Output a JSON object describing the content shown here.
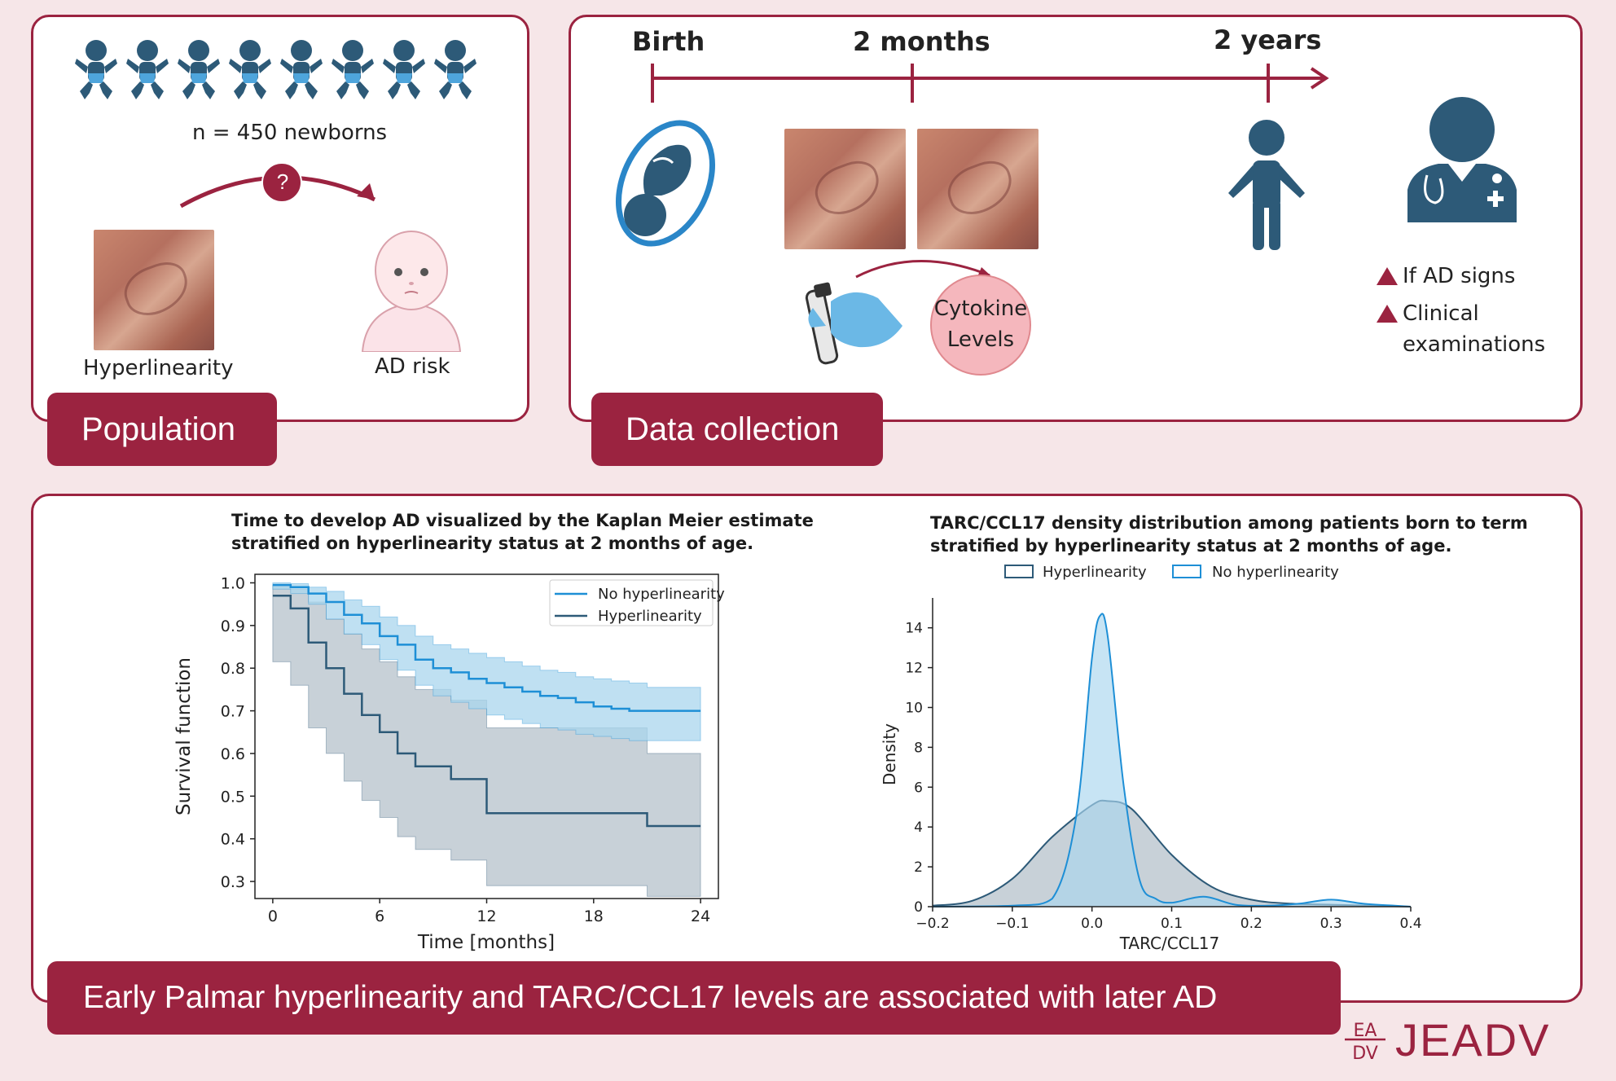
{
  "population": {
    "tab_label": "Population",
    "n_label": "n = 450 newborns",
    "question_mark": "?",
    "hyperlinearity_label": "Hyperlinearity",
    "ad_risk_label": "AD risk"
  },
  "data_collection": {
    "tab_label": "Data collection",
    "timeline": [
      "Birth",
      "2 months",
      "2 years"
    ],
    "cytokine_label_line1": "Cytokine",
    "cytokine_label_line2": "Levels",
    "notes": [
      "If AD signs",
      "Clinical",
      "examinations"
    ]
  },
  "conclusion": {
    "tab_label": "Early Palmar hyperlinearity and TARC/CCL17 levels are associated with later AD"
  },
  "logo": {
    "text": "JEADV",
    "mark": [
      "EA",
      "DV"
    ]
  },
  "colors": {
    "brand": "#9b2340",
    "navy": "#2d5a78",
    "light_blue": "#1e8fd6",
    "fill_blue": "#a9d5ee",
    "fill_grey": "#9aabb8"
  },
  "chart_data": [
    {
      "type": "line",
      "title_line1": "Time to develop AD visualized by the Kaplan Meier estimate",
      "title_line2": "stratified on hyperlinearity status at 2 months of age.",
      "xlabel": "Time [months]",
      "ylabel": "Survival function",
      "xlim": [
        -1,
        25
      ],
      "ylim": [
        0.26,
        1.02
      ],
      "xticks": [
        "0",
        "6",
        "12",
        "18",
        "24"
      ],
      "yticks": [
        "1.0",
        "0.9",
        "0.8",
        "0.7",
        "0.6",
        "0.5",
        "0.4",
        "0.3"
      ],
      "legend": "top-right",
      "series": [
        {
          "name": "No hyperlinearity",
          "color": "#1e8fd6",
          "x": [
            0,
            1,
            2,
            3,
            4,
            5,
            6,
            7,
            8,
            9,
            10,
            11,
            12,
            13,
            14,
            15,
            16,
            17,
            18,
            19,
            20,
            21,
            24
          ],
          "y": [
            0.995,
            0.99,
            0.975,
            0.955,
            0.925,
            0.905,
            0.875,
            0.855,
            0.82,
            0.8,
            0.79,
            0.775,
            0.765,
            0.755,
            0.745,
            0.735,
            0.73,
            0.72,
            0.71,
            0.705,
            0.7,
            0.7,
            0.7
          ],
          "lower": [
            0.985,
            0.975,
            0.95,
            0.915,
            0.88,
            0.855,
            0.82,
            0.795,
            0.76,
            0.735,
            0.72,
            0.705,
            0.69,
            0.68,
            0.67,
            0.66,
            0.655,
            0.645,
            0.64,
            0.635,
            0.63,
            0.63,
            0.63
          ],
          "upper": [
            1.0,
            0.998,
            0.99,
            0.98,
            0.96,
            0.945,
            0.92,
            0.9,
            0.875,
            0.855,
            0.845,
            0.835,
            0.825,
            0.815,
            0.805,
            0.795,
            0.79,
            0.78,
            0.775,
            0.77,
            0.765,
            0.755,
            0.755
          ]
        },
        {
          "name": "Hyperlinearity",
          "color": "#2d5a78",
          "x": [
            0,
            1,
            2,
            3,
            4,
            5,
            6,
            7,
            8,
            10,
            12,
            21,
            24
          ],
          "y": [
            0.97,
            0.94,
            0.86,
            0.8,
            0.74,
            0.69,
            0.65,
            0.6,
            0.57,
            0.54,
            0.46,
            0.43,
            0.43
          ],
          "lower": [
            0.815,
            0.76,
            0.66,
            0.6,
            0.535,
            0.49,
            0.45,
            0.405,
            0.375,
            0.35,
            0.29,
            0.265,
            0.265
          ],
          "upper": [
            0.995,
            0.985,
            0.955,
            0.915,
            0.88,
            0.845,
            0.815,
            0.78,
            0.75,
            0.725,
            0.66,
            0.6,
            0.585
          ]
        }
      ]
    },
    {
      "type": "area",
      "title_line1": "TARC/CCL17 density distribution among patients born to term",
      "title_line2": "stratified by hyperlinearity status at 2 months of age.",
      "xlabel": "TARC/CCL17",
      "ylabel": "Density",
      "xlim": [
        -0.2,
        0.4
      ],
      "ylim": [
        0,
        15.5
      ],
      "xticks": [
        "−0.2",
        "−0.1",
        "0.0",
        "0.1",
        "0.2",
        "0.3",
        "0.4"
      ],
      "yticks": [
        "0",
        "2",
        "4",
        "6",
        "8",
        "10",
        "12",
        "14"
      ],
      "legend": "top",
      "series": [
        {
          "name": "Hyperlinearity",
          "color": "#2d5a78",
          "x": [
            -0.2,
            -0.15,
            -0.1,
            -0.05,
            0.0,
            0.02,
            0.05,
            0.1,
            0.15,
            0.2,
            0.25,
            0.3,
            0.35,
            0.4
          ],
          "y": [
            0.05,
            0.3,
            1.4,
            3.5,
            5.1,
            5.3,
            4.9,
            2.6,
            1.0,
            0.35,
            0.15,
            0.1,
            0.05,
            0.0
          ]
        },
        {
          "name": "No hyperlinearity",
          "color": "#1e8fd6",
          "x": [
            -0.2,
            -0.1,
            -0.05,
            -0.02,
            0.0,
            0.01,
            0.02,
            0.04,
            0.06,
            0.08,
            0.1,
            0.14,
            0.18,
            0.22,
            0.26,
            0.3,
            0.34,
            0.38,
            0.4
          ],
          "y": [
            0.0,
            0.05,
            0.4,
            4.5,
            12.5,
            14.6,
            13.5,
            6.0,
            1.3,
            0.4,
            0.2,
            0.5,
            0.1,
            0.05,
            0.15,
            0.35,
            0.15,
            0.05,
            0.0
          ]
        }
      ]
    }
  ]
}
